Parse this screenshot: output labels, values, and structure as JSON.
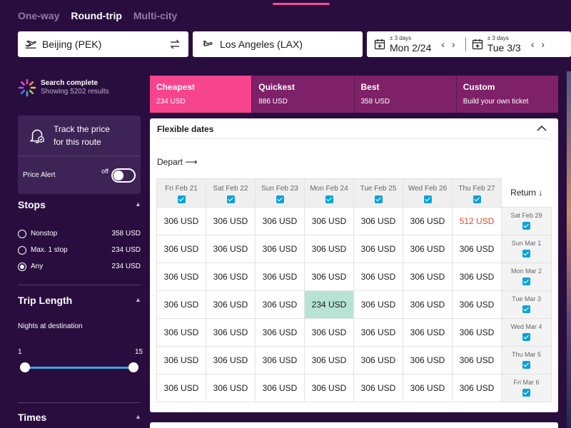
{
  "trip_types": [
    {
      "label": "One-way",
      "active": false
    },
    {
      "label": "Round-trip",
      "active": true
    },
    {
      "label": "Multi-city",
      "active": false
    }
  ],
  "search": {
    "from": "Beijing (PEK)",
    "to": "Los Angeles (LAX)",
    "depart_flex": "± 3 days",
    "depart_date": "Mon 2/24",
    "return_flex": "± 3 days",
    "return_date": "Tue 3/3"
  },
  "status": {
    "title": "Search complete",
    "subtitle": "Showing 5202 results"
  },
  "price_alert": {
    "title_line1": "Track the price",
    "title_line2": "for this route",
    "label": "Price Alert",
    "toggle_state": "off"
  },
  "stops": {
    "heading": "Stops",
    "options": [
      {
        "label": "Nonstop",
        "price": "358 USD",
        "checked": false
      },
      {
        "label": "Max. 1 stop",
        "price": "234 USD",
        "checked": false
      },
      {
        "label": "Any",
        "price": "234 USD",
        "checked": true
      }
    ]
  },
  "trip_length": {
    "heading": "Trip Length",
    "label": "Nights at destination",
    "min": "1",
    "max": "15"
  },
  "times": {
    "heading": "Times"
  },
  "sort_tabs": [
    {
      "name": "Cheapest",
      "price": "234 USD",
      "active": true
    },
    {
      "name": "Quickest",
      "price": "886 USD",
      "active": false
    },
    {
      "name": "Best",
      "price": "358 USD",
      "active": false
    },
    {
      "name": "Custom",
      "price": "Build your own ticket",
      "active": false
    }
  ],
  "flex": {
    "title": "Flexible dates",
    "depart_label": "Depart",
    "return_label": "Return",
    "depart_dates": [
      "Fri Feb 21",
      "Sat Feb 22",
      "Sun Feb 23",
      "Mon Feb 24",
      "Tue Feb 25",
      "Wed Feb 26",
      "Thu Feb 27"
    ],
    "rows": [
      {
        "return_date": "Sat Feb 29",
        "prices": [
          "306 USD",
          "306 USD",
          "306 USD",
          "306 USD",
          "306 USD",
          "306 USD",
          "512 USD"
        ]
      },
      {
        "return_date": "Sun Mar 1",
        "prices": [
          "306 USD",
          "306 USD",
          "306 USD",
          "306 USD",
          "306 USD",
          "306 USD",
          "306 USD"
        ]
      },
      {
        "return_date": "Mon Mar 2",
        "prices": [
          "306 USD",
          "306 USD",
          "306 USD",
          "306 USD",
          "306 USD",
          "306 USD",
          "306 USD"
        ]
      },
      {
        "return_date": "Tue Mar 3",
        "prices": [
          "306 USD",
          "306 USD",
          "306 USD",
          "234 USD",
          "306 USD",
          "306 USD",
          "306 USD"
        ]
      },
      {
        "return_date": "Wed Mar 4",
        "prices": [
          "306 USD",
          "306 USD",
          "306 USD",
          "306 USD",
          "306 USD",
          "306 USD",
          "306 USD"
        ]
      },
      {
        "return_date": "Thu Mar 5",
        "prices": [
          "306 USD",
          "306 USD",
          "306 USD",
          "306 USD",
          "306 USD",
          "306 USD",
          "306 USD"
        ]
      },
      {
        "return_date": "Fri Mar 6",
        "prices": [
          "306 USD",
          "306 USD",
          "306 USD",
          "306 USD",
          "306 USD",
          "306 USD",
          "306 USD"
        ]
      }
    ]
  },
  "colors": {
    "background": "#2a0d3f",
    "accent_active": "#f7458d",
    "tab_inactive": "#7e2168",
    "best_price": "#b7e3d5",
    "high_price": "#e24b2c",
    "checkbox": "#0aa3d8"
  }
}
